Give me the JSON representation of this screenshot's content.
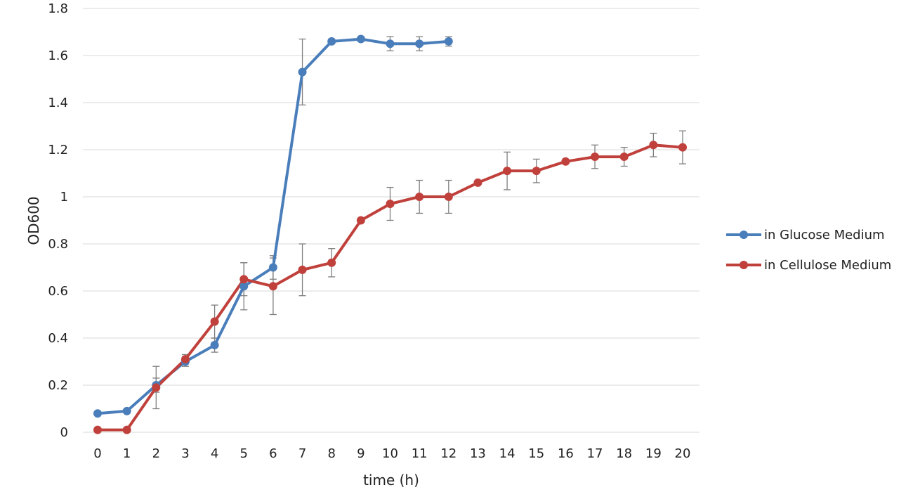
{
  "chart_data": {
    "type": "line",
    "title": "",
    "xlabel": "time (h)",
    "ylabel": "OD600",
    "x": [
      0,
      1,
      2,
      3,
      4,
      5,
      6,
      7,
      8,
      9,
      10,
      11,
      12,
      13,
      14,
      15,
      16,
      17,
      18,
      19,
      20
    ],
    "ylim": [
      0,
      1.8
    ],
    "y_ticks": [
      0,
      0.2,
      0.4,
      0.6,
      0.8,
      1,
      1.2,
      1.4,
      1.6,
      1.8
    ],
    "y_tick_labels": [
      "0",
      "0.2",
      "0.4",
      "0.6",
      "0.8",
      "1",
      "1.2",
      "1.4",
      "1.6",
      "1.8"
    ],
    "grid": "horizontal",
    "legend_position": "right",
    "series": [
      {
        "name": "in Glucose Medium",
        "color": "#4a7ebb",
        "x": [
          0,
          1,
          2,
          3,
          4,
          5,
          6,
          7,
          8,
          9,
          10,
          11,
          12
        ],
        "values": [
          0.08,
          0.09,
          0.2,
          0.3,
          0.37,
          0.62,
          0.7,
          1.53,
          1.66,
          1.67,
          1.65,
          1.65,
          1.66
        ],
        "error": [
          0,
          0,
          0.03,
          0.02,
          0.03,
          0.1,
          0.05,
          0.14,
          0.01,
          0.01,
          0.03,
          0.03,
          0.02
        ]
      },
      {
        "name": "in Cellulose Medium",
        "color": "#c0403b",
        "x": [
          0,
          1,
          2,
          3,
          4,
          5,
          6,
          7,
          8,
          9,
          10,
          11,
          12,
          13,
          14,
          15,
          16,
          17,
          18,
          19,
          20
        ],
        "values": [
          0.01,
          0.01,
          0.19,
          0.31,
          0.47,
          0.65,
          0.62,
          0.69,
          0.72,
          0.9,
          0.97,
          1.0,
          1.0,
          1.06,
          1.11,
          1.11,
          1.15,
          1.17,
          1.17,
          1.22,
          1.21
        ],
        "error": [
          0,
          0,
          0.09,
          0.02,
          0.07,
          0.07,
          0.12,
          0.11,
          0.06,
          0,
          0.07,
          0.07,
          0.07,
          0,
          0.08,
          0.05,
          0,
          0.05,
          0.04,
          0.05,
          0.07
        ]
      }
    ]
  }
}
